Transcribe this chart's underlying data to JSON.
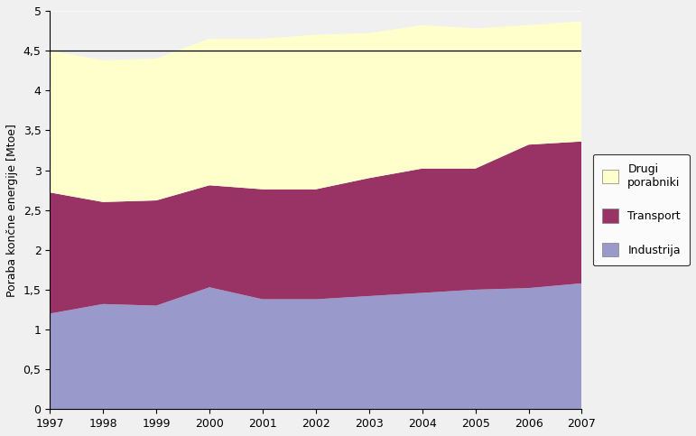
{
  "years": [
    1997,
    1998,
    1999,
    2000,
    2001,
    2002,
    2003,
    2004,
    2005,
    2006,
    2007
  ],
  "industrija": [
    1.2,
    1.32,
    1.3,
    1.53,
    1.38,
    1.38,
    1.42,
    1.46,
    1.5,
    1.52,
    1.58
  ],
  "transport": [
    1.52,
    1.28,
    1.32,
    1.28,
    1.38,
    1.38,
    1.48,
    1.56,
    1.52,
    1.8,
    1.78
  ],
  "drugi_porabniki": [
    1.78,
    1.78,
    1.78,
    1.84,
    1.89,
    1.94,
    1.82,
    1.8,
    1.76,
    1.5,
    1.51
  ],
  "colors": {
    "industrija": "#9999cc",
    "transport": "#993366",
    "drugi_porabniki": "#ffffcc"
  },
  "ylabel": "Poraba končne energije [Mtoe]",
  "ylim": [
    0,
    5
  ],
  "yticks": [
    0,
    0.5,
    1,
    1.5,
    2,
    2.5,
    3,
    3.5,
    4,
    4.5,
    5
  ],
  "ytick_labels": [
    "0",
    "0,5",
    "1",
    "1,5",
    "2",
    "2,5",
    "3",
    "3,5",
    "4",
    "4,5",
    "5"
  ],
  "reference_line_y": 4.5,
  "figsize": [
    7.71,
    4.83
  ],
  "dpi": 100
}
